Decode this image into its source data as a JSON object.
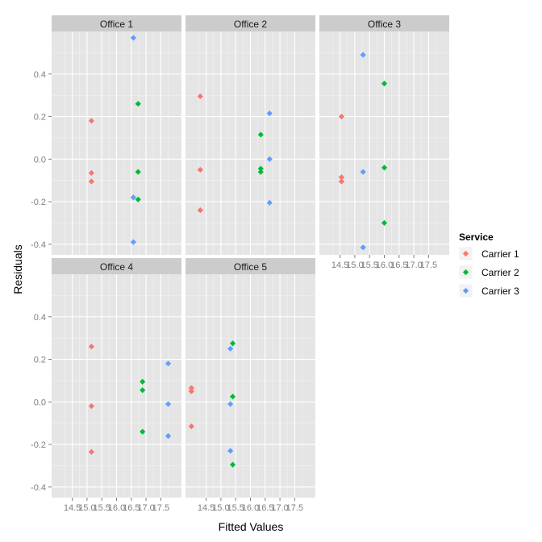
{
  "chart_data": {
    "type": "scatter",
    "facet_by": "Office",
    "xlabel": "Fitted Values",
    "ylabel": "Residuals",
    "xlim": [
      13.8,
      18.2
    ],
    "ylim": [
      -0.45,
      0.6
    ],
    "x_ticks": [
      14.5,
      15.0,
      15.5,
      16.0,
      16.5,
      17.0,
      17.5
    ],
    "x_tick_labels": [
      "14.5",
      "15.0",
      "15.5",
      "16.0",
      "16.5",
      "17.0",
      "17.5"
    ],
    "y_ticks": [
      -0.4,
      -0.2,
      0.0,
      0.2,
      0.4
    ],
    "y_tick_labels": [
      "-0.4",
      "-0.2",
      "0.0",
      "0.2",
      "0.4"
    ],
    "grid": true,
    "legend": {
      "title": "Service",
      "position": "right",
      "entries": [
        "Carrier 1",
        "Carrier 2",
        "Carrier 3"
      ]
    },
    "colors": {
      "Carrier 1": "#F8766D",
      "Carrier 2": "#00BA38",
      "Carrier 3": "#619CFF",
      "panel_bg": "#E5E5E5",
      "strip_bg": "#CCCCCC"
    },
    "panels": [
      {
        "name": "Office 1",
        "series": [
          {
            "name": "Carrier 1",
            "x": [
              15.15,
              15.15,
              15.15
            ],
            "y": [
              0.18,
              -0.065,
              -0.105
            ]
          },
          {
            "name": "Carrier 2",
            "x": [
              16.73,
              16.73,
              16.73
            ],
            "y": [
              0.26,
              -0.06,
              -0.19
            ]
          },
          {
            "name": "Carrier 3",
            "x": [
              16.57,
              16.57,
              16.57
            ],
            "y": [
              0.57,
              -0.18,
              -0.39
            ]
          }
        ]
      },
      {
        "name": "Office 2",
        "series": [
          {
            "name": "Carrier 1",
            "x": [
              14.3,
              14.3,
              14.3
            ],
            "y": [
              0.295,
              -0.05,
              -0.24
            ]
          },
          {
            "name": "Carrier 2",
            "x": [
              16.35,
              16.35,
              16.35
            ],
            "y": [
              0.115,
              -0.045,
              -0.06
            ]
          },
          {
            "name": "Carrier 3",
            "x": [
              16.65,
              16.65,
              16.65
            ],
            "y": [
              0.215,
              0.0,
              -0.205
            ]
          }
        ]
      },
      {
        "name": "Office 3",
        "series": [
          {
            "name": "Carrier 1",
            "x": [
              14.55,
              14.55,
              14.55
            ],
            "y": [
              0.2,
              -0.085,
              -0.105
            ]
          },
          {
            "name": "Carrier 2",
            "x": [
              16.0,
              16.0,
              16.0
            ],
            "y": [
              0.355,
              -0.04,
              -0.3
            ]
          },
          {
            "name": "Carrier 3",
            "x": [
              15.28,
              15.28,
              15.28
            ],
            "y": [
              0.49,
              -0.06,
              -0.415
            ]
          }
        ]
      },
      {
        "name": "Office 4",
        "series": [
          {
            "name": "Carrier 1",
            "x": [
              15.15,
              15.15,
              15.15
            ],
            "y": [
              0.26,
              -0.02,
              -0.235
            ]
          },
          {
            "name": "Carrier 2",
            "x": [
              16.88,
              16.88,
              16.88
            ],
            "y": [
              0.095,
              0.055,
              -0.14
            ]
          },
          {
            "name": "Carrier 3",
            "x": [
              17.75,
              17.75,
              17.75
            ],
            "y": [
              0.18,
              -0.01,
              -0.16
            ]
          }
        ]
      },
      {
        "name": "Office 5",
        "series": [
          {
            "name": "Carrier 1",
            "x": [
              14.0,
              14.0,
              14.0
            ],
            "y": [
              0.065,
              0.05,
              -0.115
            ]
          },
          {
            "name": "Carrier 2",
            "x": [
              15.4,
              15.4,
              15.4
            ],
            "y": [
              0.275,
              0.025,
              -0.295
            ]
          },
          {
            "name": "Carrier 3",
            "x": [
              15.32,
              15.32,
              15.32
            ],
            "y": [
              0.25,
              -0.01,
              -0.23
            ]
          }
        ]
      }
    ]
  }
}
